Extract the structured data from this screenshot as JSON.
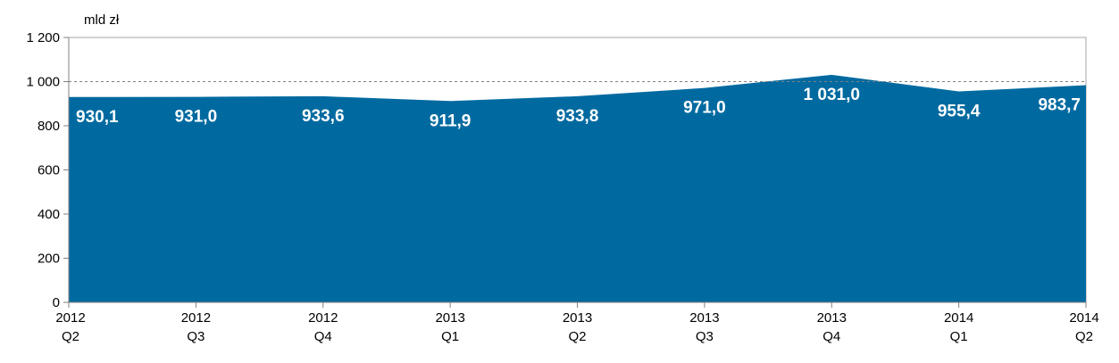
{
  "chart_data": {
    "type": "area",
    "unit_label": "mld zł",
    "categories": [
      {
        "year": "2012",
        "quarter": "Q2"
      },
      {
        "year": "2012",
        "quarter": "Q3"
      },
      {
        "year": "2012",
        "quarter": "Q4"
      },
      {
        "year": "2013",
        "quarter": "Q1"
      },
      {
        "year": "2013",
        "quarter": "Q2"
      },
      {
        "year": "2013",
        "quarter": "Q3"
      },
      {
        "year": "2013",
        "quarter": "Q4"
      },
      {
        "year": "2014",
        "quarter": "Q1"
      },
      {
        "year": "2014",
        "quarter": "Q2"
      }
    ],
    "series": [
      {
        "values": [
          930.1,
          931.0,
          933.6,
          911.9,
          933.8,
          971.0,
          1031.0,
          955.4,
          983.7
        ],
        "value_labels": [
          "930,1",
          "931,0",
          "933,6",
          "911,9",
          "933,8",
          "971,0",
          "1 031,0",
          "955,4",
          "983,7"
        ],
        "color": "#006AA0"
      }
    ],
    "ylim": [
      0,
      1200
    ],
    "yticks": [
      {
        "value": 0,
        "label": "0"
      },
      {
        "value": 200,
        "label": "200"
      },
      {
        "value": 400,
        "label": "400"
      },
      {
        "value": 600,
        "label": "600"
      },
      {
        "value": 800,
        "label": "800"
      },
      {
        "value": 1000,
        "label": "1 000"
      },
      {
        "value": 1200,
        "label": "1 200"
      }
    ],
    "reference_line": {
      "value": 1000,
      "style": "dashed"
    },
    "grid": false,
    "legend": "none"
  }
}
